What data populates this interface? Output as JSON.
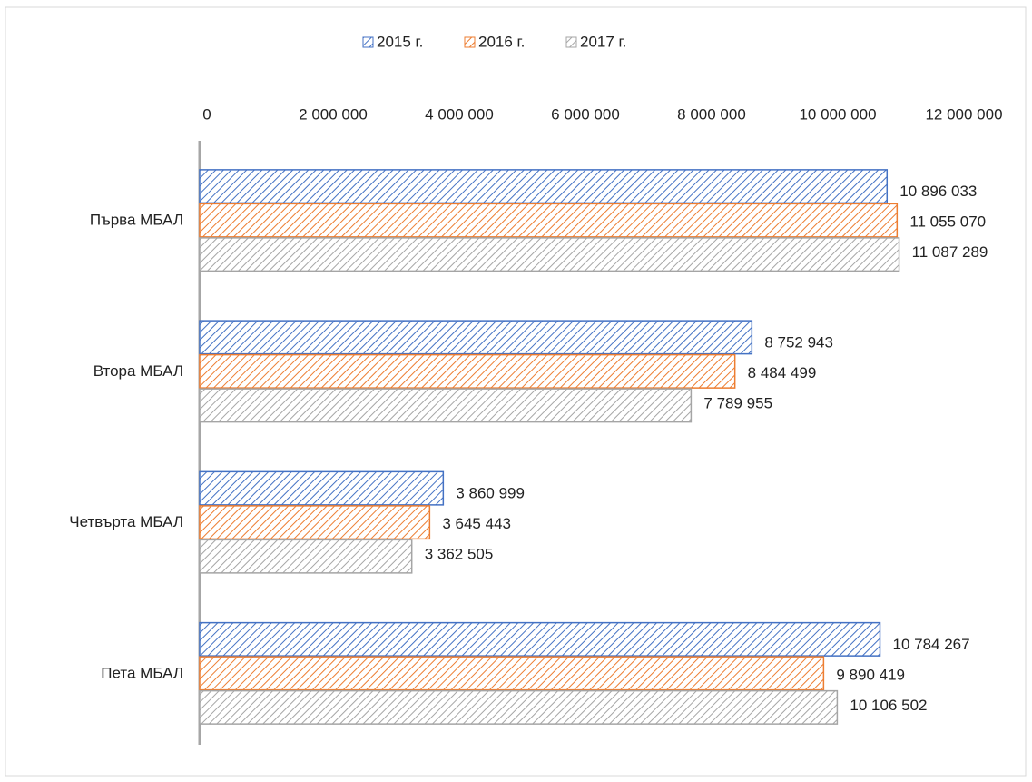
{
  "chart_data": {
    "type": "bar",
    "orientation": "horizontal",
    "categories": [
      "Първа МБАЛ",
      "Втора МБАЛ",
      "Четвърта МБАЛ",
      "Пета МБАЛ"
    ],
    "series": [
      {
        "name": "2015 г.",
        "color": "#4472c4",
        "values": [
          10896033,
          8752943,
          3860999,
          10784267
        ],
        "value_labels": [
          "10 896 033",
          "8 752 943",
          "3 860 999",
          "10 784 267"
        ]
      },
      {
        "name": "2016 г.",
        "color": "#ed7d31",
        "values": [
          11055070,
          8484499,
          3645443,
          9890419
        ],
        "value_labels": [
          "11 055 070",
          "8 484 499",
          "3 645 443",
          "9 890 419"
        ]
      },
      {
        "name": "2017 г.",
        "color": "#a5a5a5",
        "values": [
          11087289,
          7789955,
          3362505,
          10106502
        ],
        "value_labels": [
          "11 087 289",
          "7 789 955",
          "3 362 505",
          "10 106 502"
        ]
      }
    ],
    "xlim": [
      0,
      12000000
    ],
    "xticks": [
      0,
      {
        "value": 2000000,
        "label": "2 000 000"
      },
      {
        "value": 4000000,
        "label": "4 000 000"
      },
      {
        "value": 6000000,
        "label": "6 000 000"
      },
      {
        "value": 8000000,
        "label": "8 000 000"
      },
      {
        "value": 10000000,
        "label": "10 000 000"
      },
      {
        "value": 12000000,
        "label": "12 000 000"
      }
    ],
    "legend": "top",
    "hatched": true
  }
}
